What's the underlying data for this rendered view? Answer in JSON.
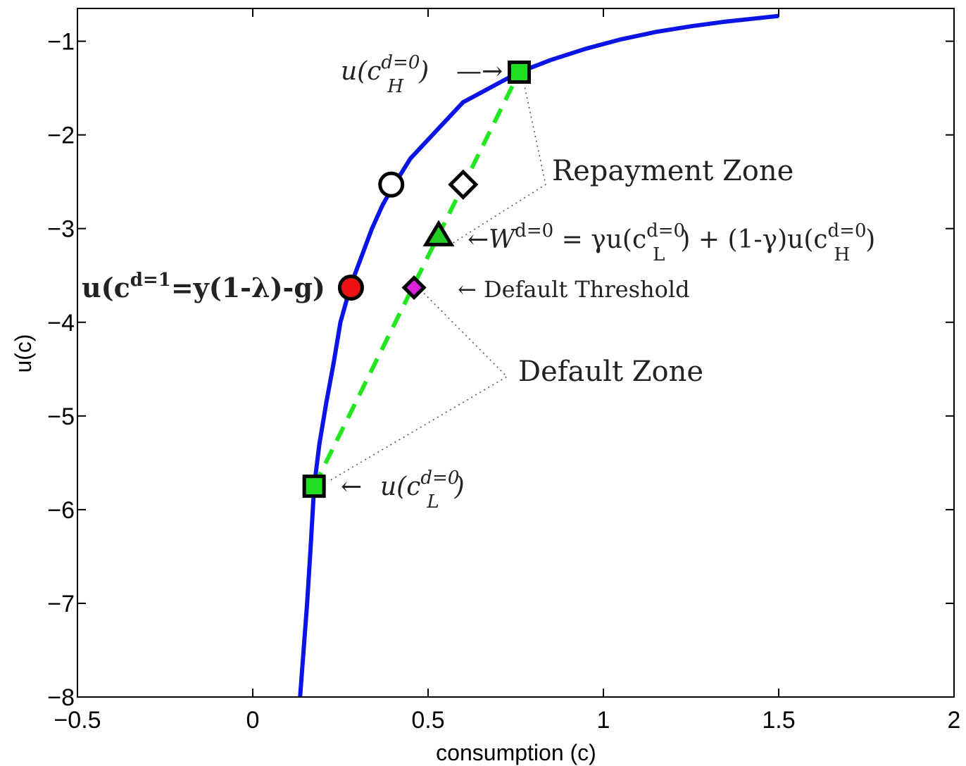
{
  "chart_data": {
    "type": "line",
    "xlabel": "consumption (c)",
    "ylabel": "u(c)",
    "xlim": [
      -0.5,
      2
    ],
    "ylim": [
      -8,
      -0.65
    ],
    "xticks": [
      -0.5,
      0,
      0.5,
      1,
      1.5,
      2
    ],
    "xtick_labels": [
      "−0.5",
      "0",
      "0.5",
      "1",
      "1.5",
      "2"
    ],
    "yticks": [
      -8,
      -7,
      -6,
      -5,
      -4,
      -3,
      -2,
      -1
    ],
    "ytick_labels": [
      "−8",
      "−7",
      "−6",
      "−5",
      "−4",
      "−3",
      "−2",
      "−1"
    ],
    "grid": false,
    "series": [
      {
        "style": "solid",
        "color": "#0a14e6",
        "x": [
          0.135,
          0.145,
          0.155,
          0.165,
          0.175,
          0.19,
          0.21,
          0.23,
          0.25,
          0.28,
          0.31,
          0.34,
          0.37,
          0.4,
          0.45,
          0.5,
          0.55,
          0.6,
          0.65,
          0.7,
          0.76,
          0.85,
          0.95,
          1.05,
          1.15,
          1.25,
          1.35,
          1.45,
          1.5
        ],
        "y": [
          -8.0,
          -7.5,
          -7.0,
          -6.4,
          -5.75,
          -5.3,
          -4.85,
          -4.45,
          -4.0,
          -3.6,
          -3.3,
          -3.0,
          -2.75,
          -2.55,
          -2.25,
          -2.05,
          -1.85,
          -1.65,
          -1.55,
          -1.45,
          -1.33,
          -1.2,
          -1.08,
          -0.98,
          -0.9,
          -0.84,
          -0.79,
          -0.75,
          -0.73
        ]
      },
      {
        "style": "dashed",
        "color": "#22e61e",
        "x": [
          0.175,
          0.76
        ],
        "y": [
          -5.75,
          -1.33
        ]
      }
    ],
    "markers": [
      {
        "shape": "square",
        "x": 0.76,
        "y": -1.33,
        "fill": "#22dd22",
        "stroke": "#000000"
      },
      {
        "shape": "square",
        "x": 0.175,
        "y": -5.75,
        "fill": "#22dd22",
        "stroke": "#000000"
      },
      {
        "shape": "circle",
        "x": 0.395,
        "y": -2.53,
        "fill": "#ffffff",
        "stroke": "#000000"
      },
      {
        "shape": "diamond",
        "x": 0.6,
        "y": -2.53,
        "fill": "#ffffff",
        "stroke": "#000000"
      },
      {
        "shape": "triangle",
        "x": 0.53,
        "y": -3.08,
        "fill": "#22cc22",
        "stroke": "#000000"
      },
      {
        "shape": "circle",
        "x": 0.28,
        "y": -3.63,
        "fill": "#ee1111",
        "stroke": "#000000"
      },
      {
        "shape": "diamond",
        "x": 0.46,
        "y": -3.63,
        "fill": "#dd22dd",
        "stroke": "#000000"
      }
    ],
    "annotations": [
      {
        "id": "uH",
        "text_main": "u(c",
        "sup": "d=0",
        "sub": "H",
        "text_end": ")",
        "arrow": "—→",
        "x": 0.75,
        "y": -1.33
      },
      {
        "id": "uL",
        "arrow": "←",
        "text_main": "u(c",
        "sup": "d=0",
        "sub": "L",
        "text_end": ")",
        "x": 0.2,
        "y": -5.75
      },
      {
        "id": "repay",
        "text": "Repayment  Zone"
      },
      {
        "id": "default_zone",
        "text": "Default  Zone"
      },
      {
        "id": "threshold",
        "text": "← Default  Threshold"
      },
      {
        "id": "W",
        "part1": "←W",
        "sup1": "d=0",
        "part2": " = γu(c",
        "sup2": "d=0",
        "sub2": "L",
        "part3": ") + (1-γ)u(c",
        "sup3": "d=0",
        "sub3": "H",
        "part4": ")"
      },
      {
        "id": "ud1",
        "main": "u(c",
        "sup": "d=1",
        "rest": "=y(1-λ)-g)"
      }
    ]
  }
}
